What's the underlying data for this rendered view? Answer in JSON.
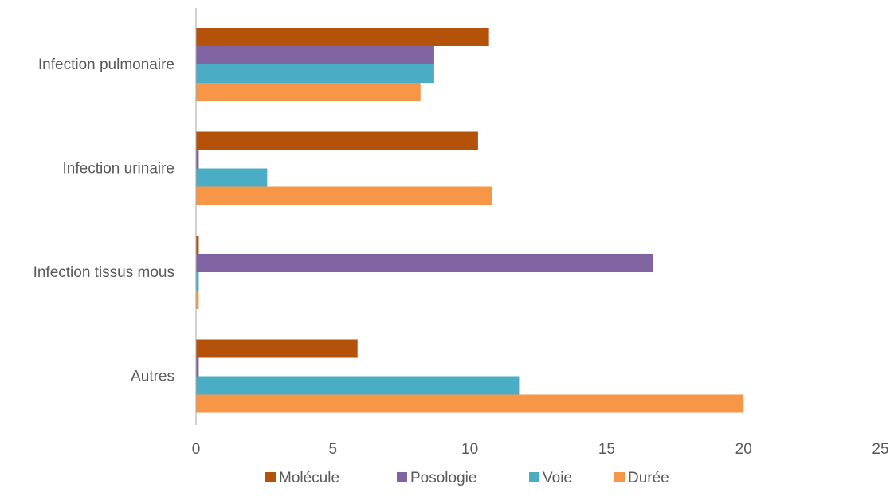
{
  "chart_data": {
    "type": "bar",
    "orientation": "horizontal",
    "categories": [
      "Infection pulmonaire",
      "Infection urinaire",
      "Infection tissus mous",
      "Autres"
    ],
    "series": [
      {
        "name": "Molécule",
        "color": "#B4520A",
        "values": [
          10.7,
          10.3,
          0.1,
          5.9
        ]
      },
      {
        "name": "Posologie",
        "color": "#8064A2",
        "values": [
          8.7,
          0.1,
          16.7,
          0.1
        ]
      },
      {
        "name": "Voie",
        "color": "#4BACC6",
        "values": [
          8.7,
          2.6,
          0.1,
          11.8
        ]
      },
      {
        "name": "Durée",
        "color": "#F79646",
        "values": [
          8.2,
          10.8,
          0.1,
          20.0
        ]
      }
    ],
    "xlim": [
      0,
      25
    ],
    "x_ticks": [
      "0",
      "5",
      "10",
      "15",
      "20",
      "25"
    ],
    "grid": false,
    "legend_position": "bottom"
  }
}
